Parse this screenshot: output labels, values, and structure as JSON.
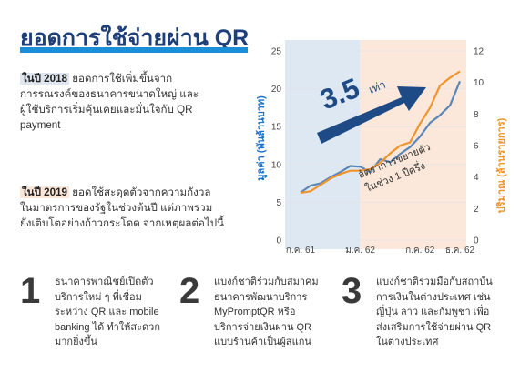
{
  "title": "ยอดการใช้จ่ายผ่าน QR",
  "block1": {
    "year": "ในปี 2018",
    "lines": [
      " ยอดการใช้เพิ่มขึ้นจาก",
      "การรณรงค์ของธนาคารขนาดใหญ่ และ",
      "ผู้ใช้บริการเริ่มคุ้นเคยและมั่นใจกับ QR",
      "payment"
    ]
  },
  "block2": {
    "year": "ในปี 2019",
    "lines": [
      " ยอดใช้สะดุดตัวจากความกังวล",
      "ในมาตรการของรัฐในช่วงต้นปี แต่ภาพรวม",
      "ยังเติบโตอย่างก้าวกระโดด จากเหตุผลต่อไปนี้"
    ]
  },
  "steps": [
    {
      "num": "1",
      "lines": [
        "ธนาคารพาณิชย์เปิดตัว",
        "บริการใหม่ ๆ ที่เชื่อม",
        "ระหว่าง QR และ mobile",
        "banking ได้ ทำให้สะดวก",
        "มากยิ่งขึ้น"
      ]
    },
    {
      "num": "2",
      "lines": [
        "แบงก์ชาติร่วมกับสมาคม",
        "ธนาคารพัฒนาบริการ",
        "MyPromptQR หรือ",
        "บริการจ่ายเงินผ่าน QR",
        "แบบร้านค้าเป็นผู้สแกน"
      ]
    },
    {
      "num": "3",
      "lines": [
        "แบงก์ชาติร่วมมือกับสถาบัน",
        "การเงินในต่างประเทศ เช่น",
        "ญี่ปุ่น ลาว และกัมพูชา เพื่อ",
        "ส่งเสริมการใช้จ่ายผ่าน QR",
        "ในต่างประเทศ"
      ]
    }
  ],
  "chart_data": {
    "type": "line",
    "x_ticks": [
      "ก.ค. 61",
      "ม.ค. 62",
      "ก.ค. 62",
      "ธ.ค. 62"
    ],
    "ylabel_left": "มูลค่า (พันล้านบาท)",
    "ylabel_right": "ปริมาณ (ล้านรายการ)",
    "ylim_left": [
      0,
      25
    ],
    "ylim_right": [
      0,
      12
    ],
    "yticks_left": [
      0,
      5,
      10,
      15,
      20,
      25
    ],
    "yticks_right": [
      0,
      2,
      4,
      6,
      8,
      10,
      12
    ],
    "regions": [
      {
        "label": "2018",
        "from_month": 0,
        "to_month": 6,
        "color": "#dde8f3"
      },
      {
        "label": "2019",
        "from_month": 6,
        "to_month": 17,
        "color": "#fbe8da"
      }
    ],
    "series": [
      {
        "axis": "left",
        "color": "#5b86b8",
        "values": [
          6.3,
          7.2,
          7.5,
          8.3,
          9.0,
          9.8,
          9.7,
          9.0,
          10.7,
          10.3,
          11.4,
          12.3,
          13.7,
          15.5,
          16.5,
          17.8,
          21.0
        ]
      },
      {
        "axis": "right",
        "color": "#f0942d",
        "values": [
          3.0,
          3.1,
          3.5,
          3.9,
          4.2,
          4.4,
          4.4,
          4.5,
          4.9,
          5.5,
          6.0,
          6.2,
          7.4,
          8.4,
          9.8,
          10.3,
          10.7
        ]
      }
    ],
    "annotation_big": "3.5",
    "annotation_big_suffix": "เท่า",
    "annotation_small": [
      "อัตราการขยายตัว",
      "ในช่วง 1 ปีครึ่ง"
    ]
  },
  "colors": {
    "title": "#1e3f7a",
    "accent": "#1b8ed8",
    "arrow": "#1e4a86",
    "value_axis": "#1e73c8",
    "volume_axis": "#f0942d"
  }
}
